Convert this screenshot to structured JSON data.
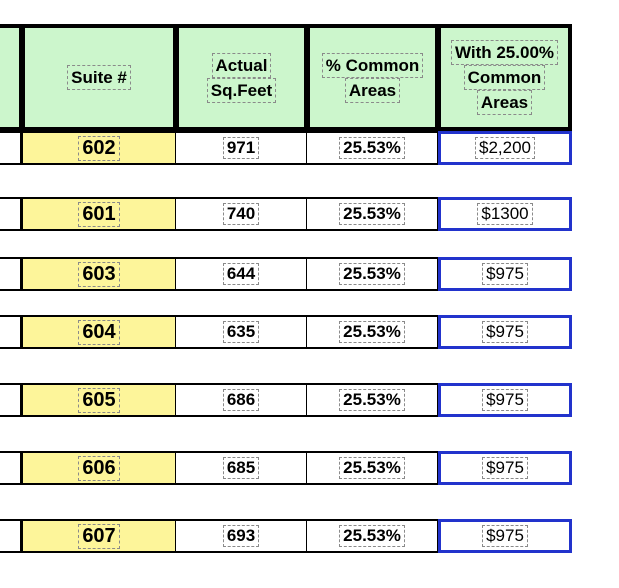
{
  "headers": {
    "suite": "Suite #",
    "sqft": [
      "Actual",
      "Sq.Feet"
    ],
    "common": [
      "% Common",
      "Areas"
    ],
    "rent": [
      "With 25.00%",
      "Common",
      "Areas"
    ]
  },
  "rows": [
    {
      "suite": "602",
      "sqft": "971",
      "common": "25.53%",
      "rent": "$2,200"
    },
    {
      "suite": "601",
      "sqft": "740",
      "common": "25.53%",
      "rent": "$1300"
    },
    {
      "suite": "603",
      "sqft": "644",
      "common": "25.53%",
      "rent": "$975"
    },
    {
      "suite": "604",
      "sqft": "635",
      "common": "25.53%",
      "rent": "$975"
    },
    {
      "suite": "605",
      "sqft": "686",
      "common": "25.53%",
      "rent": "$975"
    },
    {
      "suite": "606",
      "sqft": "685",
      "common": "25.53%",
      "rent": "$975"
    },
    {
      "suite": "607",
      "sqft": "693",
      "common": "25.53%",
      "rent": "$975"
    }
  ],
  "colors": {
    "header_bg": "#ccf6cc",
    "suite_bg": "#fdf59a",
    "rent_border": "#2233cc"
  }
}
